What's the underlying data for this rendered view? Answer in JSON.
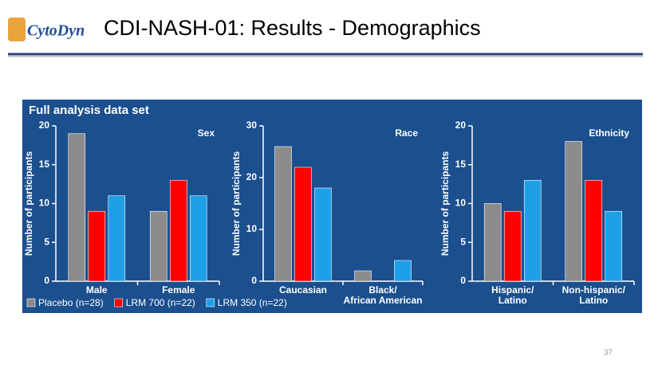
{
  "header": {
    "logo": "CytoDyn",
    "title": "CDI-NASH-01: Results - Demographics"
  },
  "panel_title": "Full analysis data set",
  "page_number": "37",
  "chart_data": [
    {
      "type": "bar",
      "title": "Sex",
      "y_label": "Number of participants",
      "categories": [
        "Male",
        "Female"
      ],
      "series": [
        {
          "name": "Placebo (n=28)",
          "color": "#8c8c8c",
          "values": [
            19,
            9
          ]
        },
        {
          "name": "LRM 700 (n=22)",
          "color": "#ff0000",
          "values": [
            9,
            13
          ]
        },
        {
          "name": "LRM 350 (n=22)",
          "color": "#1ea0e8",
          "values": [
            11,
            11
          ]
        }
      ],
      "ylim": [
        0,
        20
      ],
      "yticks": [
        0,
        5,
        10,
        15,
        20
      ],
      "legend": "bottom"
    },
    {
      "type": "bar",
      "title": "Race",
      "y_label": "Number of participants",
      "categories": [
        "Caucasian",
        "Black/\nAfrican American"
      ],
      "series": [
        {
          "name": "Placebo (n=28)",
          "color": "#8c8c8c",
          "values": [
            26,
            2
          ]
        },
        {
          "name": "LRM 700 (n=22)",
          "color": "#ff0000",
          "values": [
            22,
            0
          ]
        },
        {
          "name": "LRM 350 (n=22)",
          "color": "#1ea0e8",
          "values": [
            18,
            4
          ]
        }
      ],
      "ylim": [
        0,
        30
      ],
      "yticks": [
        0,
        10,
        20,
        30
      ]
    },
    {
      "type": "bar",
      "title": "Ethnicity",
      "y_label": "Number of participants",
      "categories": [
        "Hispanic/\nLatino",
        "Non-hispanic/\nLatino"
      ],
      "series": [
        {
          "name": "Placebo (n=28)",
          "color": "#8c8c8c",
          "values": [
            10,
            18
          ]
        },
        {
          "name": "LRM 700 (n=22)",
          "color": "#ff0000",
          "values": [
            9,
            13
          ]
        },
        {
          "name": "LRM 350 (n=22)",
          "color": "#1ea0e8",
          "values": [
            13,
            9
          ]
        }
      ],
      "ylim": [
        0,
        20
      ],
      "yticks": [
        0,
        5,
        10,
        15,
        20
      ]
    }
  ]
}
